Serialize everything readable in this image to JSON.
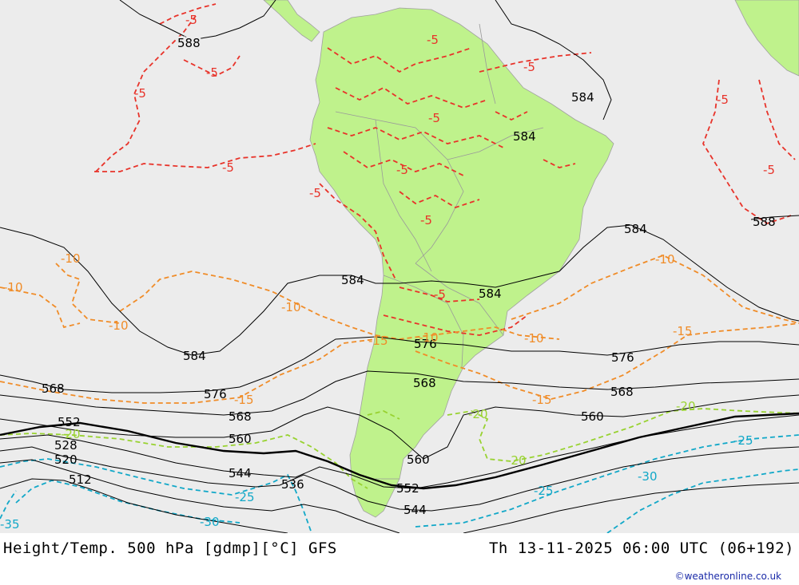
{
  "footer": {
    "product": "Height/Temp. 500 hPa [gdmp][°C] GFS",
    "valid_time": "Th 13-11-2025 06:00 UTC (06+192)",
    "credit": "©weatheronline.co.uk"
  },
  "colors": {
    "ocean": "#ececec",
    "land": "#bff28c",
    "border": "#a0a0a0",
    "height_contour": "#000000",
    "temp_minus5": "#e8332a",
    "temp_minus10_15": "#f08c28",
    "temp_minus20": "#98d230",
    "temp_minus25_35": "#12a8c8"
  },
  "height_labels": [
    {
      "text": "588"
    },
    {
      "text": "584"
    },
    {
      "text": "584"
    },
    {
      "text": "588"
    },
    {
      "text": "584"
    },
    {
      "text": "584"
    },
    {
      "text": "584"
    },
    {
      "text": "584"
    },
    {
      "text": "576"
    },
    {
      "text": "576"
    },
    {
      "text": "576"
    },
    {
      "text": "568"
    },
    {
      "text": "568"
    },
    {
      "text": "568"
    },
    {
      "text": "568"
    },
    {
      "text": "560"
    },
    {
      "text": "560"
    },
    {
      "text": "560"
    },
    {
      "text": "552"
    },
    {
      "text": "552"
    },
    {
      "text": "544"
    },
    {
      "text": "544"
    },
    {
      "text": "536"
    },
    {
      "text": "528"
    },
    {
      "text": "520"
    },
    {
      "text": "512"
    }
  ],
  "temp_labels": [
    {
      "text": "-5"
    },
    {
      "text": "-5"
    },
    {
      "text": "-5"
    },
    {
      "text": "-5"
    },
    {
      "text": "-5"
    },
    {
      "text": "-5"
    },
    {
      "text": "-5"
    },
    {
      "text": "-5"
    },
    {
      "text": "-5"
    },
    {
      "text": "-5"
    },
    {
      "text": "-5"
    },
    {
      "text": "-5"
    },
    {
      "text": "-5"
    },
    {
      "text": "-10"
    },
    {
      "text": "-10"
    },
    {
      "text": "-10"
    },
    {
      "text": "-10"
    },
    {
      "text": "-10"
    },
    {
      "text": "-10"
    },
    {
      "text": "-10"
    },
    {
      "text": "-15"
    },
    {
      "text": "-15"
    },
    {
      "text": "-15"
    },
    {
      "text": "-15"
    },
    {
      "text": "-20"
    },
    {
      "text": "-20"
    },
    {
      "text": "-20"
    },
    {
      "text": "-20"
    },
    {
      "text": "-25"
    },
    {
      "text": "-25"
    },
    {
      "text": "-25"
    },
    {
      "text": "-30"
    },
    {
      "text": "-30"
    },
    {
      "text": "-35"
    }
  ]
}
